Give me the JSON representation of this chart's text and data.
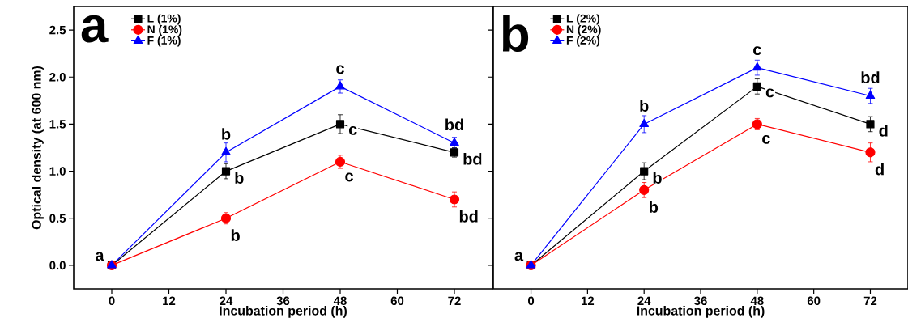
{
  "chart_data": [
    {
      "type": "line",
      "title": "a",
      "xlabel": "Incubation period (h)",
      "ylabel": "Optical density (at 600 nm)",
      "x": [
        0,
        24,
        48,
        72
      ],
      "xlim": [
        -8,
        80
      ],
      "ylim": [
        -0.25,
        2.75
      ],
      "xticks": [
        0,
        12,
        24,
        36,
        48,
        60,
        72
      ],
      "yticks": [
        {
          "value": 0,
          "label": "0.0"
        },
        {
          "value": 0.5,
          "label": "0.5"
        },
        {
          "value": 1,
          "label": "1.0"
        },
        {
          "value": 1.5,
          "label": "1.5"
        },
        {
          "value": 2,
          "label": "2.0"
        },
        {
          "value": 2.5,
          "label": "2.5"
        }
      ],
      "legend": "top left",
      "line_style": "solid",
      "series": [
        {
          "name": "L (1%)",
          "color": "#000000",
          "marker": "square",
          "values": [
            0,
            1.0,
            1.5,
            1.2
          ],
          "errors": [
            null,
            0.08,
            0.1,
            0.05
          ]
        },
        {
          "name": "N (1%)",
          "color": "#ff0000",
          "marker": "circle",
          "values": [
            0,
            0.5,
            1.1,
            0.7
          ],
          "errors": [
            null,
            0.06,
            0.07,
            0.08
          ]
        },
        {
          "name": "F (1%)",
          "color": "#0000ff",
          "marker": "triangle",
          "values": [
            0,
            1.2,
            1.9,
            1.3
          ],
          "errors": [
            null,
            0.1,
            0.07,
            0.06
          ]
        }
      ],
      "annotations": [
        {
          "text": "a",
          "x": 0,
          "y": 0
        },
        {
          "text": "b",
          "x": 24,
          "y": 1.2
        },
        {
          "text": "b",
          "x": 24,
          "y": 1.0
        },
        {
          "text": "b",
          "x": 24,
          "y": 0.5
        },
        {
          "text": "c",
          "x": 48,
          "y": 1.9
        },
        {
          "text": "c",
          "x": 48,
          "y": 1.5
        },
        {
          "text": "c",
          "x": 48,
          "y": 1.1
        },
        {
          "text": "bd",
          "x": 72,
          "y": 1.3
        },
        {
          "text": "bd",
          "x": 72,
          "y": 1.2
        },
        {
          "text": "bd",
          "x": 72,
          "y": 0.7
        }
      ]
    },
    {
      "type": "line",
      "title": "b",
      "xlabel": "Incubation period (h)",
      "x": [
        0,
        24,
        48,
        72
      ],
      "xlim": [
        -8,
        80
      ],
      "ylim": [
        -0.25,
        2.75
      ],
      "xticks": [
        0,
        12,
        24,
        36,
        48,
        60,
        72
      ],
      "yticks": [
        {
          "value": 0,
          "label": null
        },
        {
          "value": 0.5,
          "label": null
        },
        {
          "value": 1,
          "label": null
        },
        {
          "value": 1.5,
          "label": null
        },
        {
          "value": 2,
          "label": null
        },
        {
          "value": 2.5,
          "label": null
        }
      ],
      "tick_labels": "x",
      "legend": "top left",
      "line_style": "solid",
      "series": [
        {
          "name": "L (2%)",
          "color": "#000000",
          "marker": "square",
          "values": [
            0,
            1.0,
            1.9,
            1.5
          ],
          "errors": [
            null,
            0.09,
            0.08,
            0.08
          ]
        },
        {
          "name": "N (2%)",
          "color": "#ff0000",
          "marker": "circle",
          "values": [
            0,
            0.8,
            1.5,
            1.2
          ],
          "errors": [
            null,
            0.08,
            0.06,
            0.1
          ]
        },
        {
          "name": "F (2%)",
          "color": "#0000ff",
          "marker": "triangle",
          "values": [
            0,
            1.5,
            2.1,
            1.8
          ],
          "errors": [
            null,
            0.09,
            0.08,
            0.08
          ]
        }
      ],
      "annotations": [
        {
          "text": "a",
          "x": 0,
          "y": 0
        },
        {
          "text": "b",
          "x": 24,
          "y": 1.5
        },
        {
          "text": "b",
          "x": 24,
          "y": 1.0
        },
        {
          "text": "b",
          "x": 24,
          "y": 0.8
        },
        {
          "text": "c",
          "x": 48,
          "y": 2.1
        },
        {
          "text": "c",
          "x": 48,
          "y": 1.9
        },
        {
          "text": "c",
          "x": 48,
          "y": 1.5
        },
        {
          "text": "bd",
          "x": 72,
          "y": 1.8
        },
        {
          "text": "d",
          "x": 72,
          "y": 1.5
        },
        {
          "text": "d",
          "x": 72,
          "y": 1.2
        }
      ]
    }
  ]
}
